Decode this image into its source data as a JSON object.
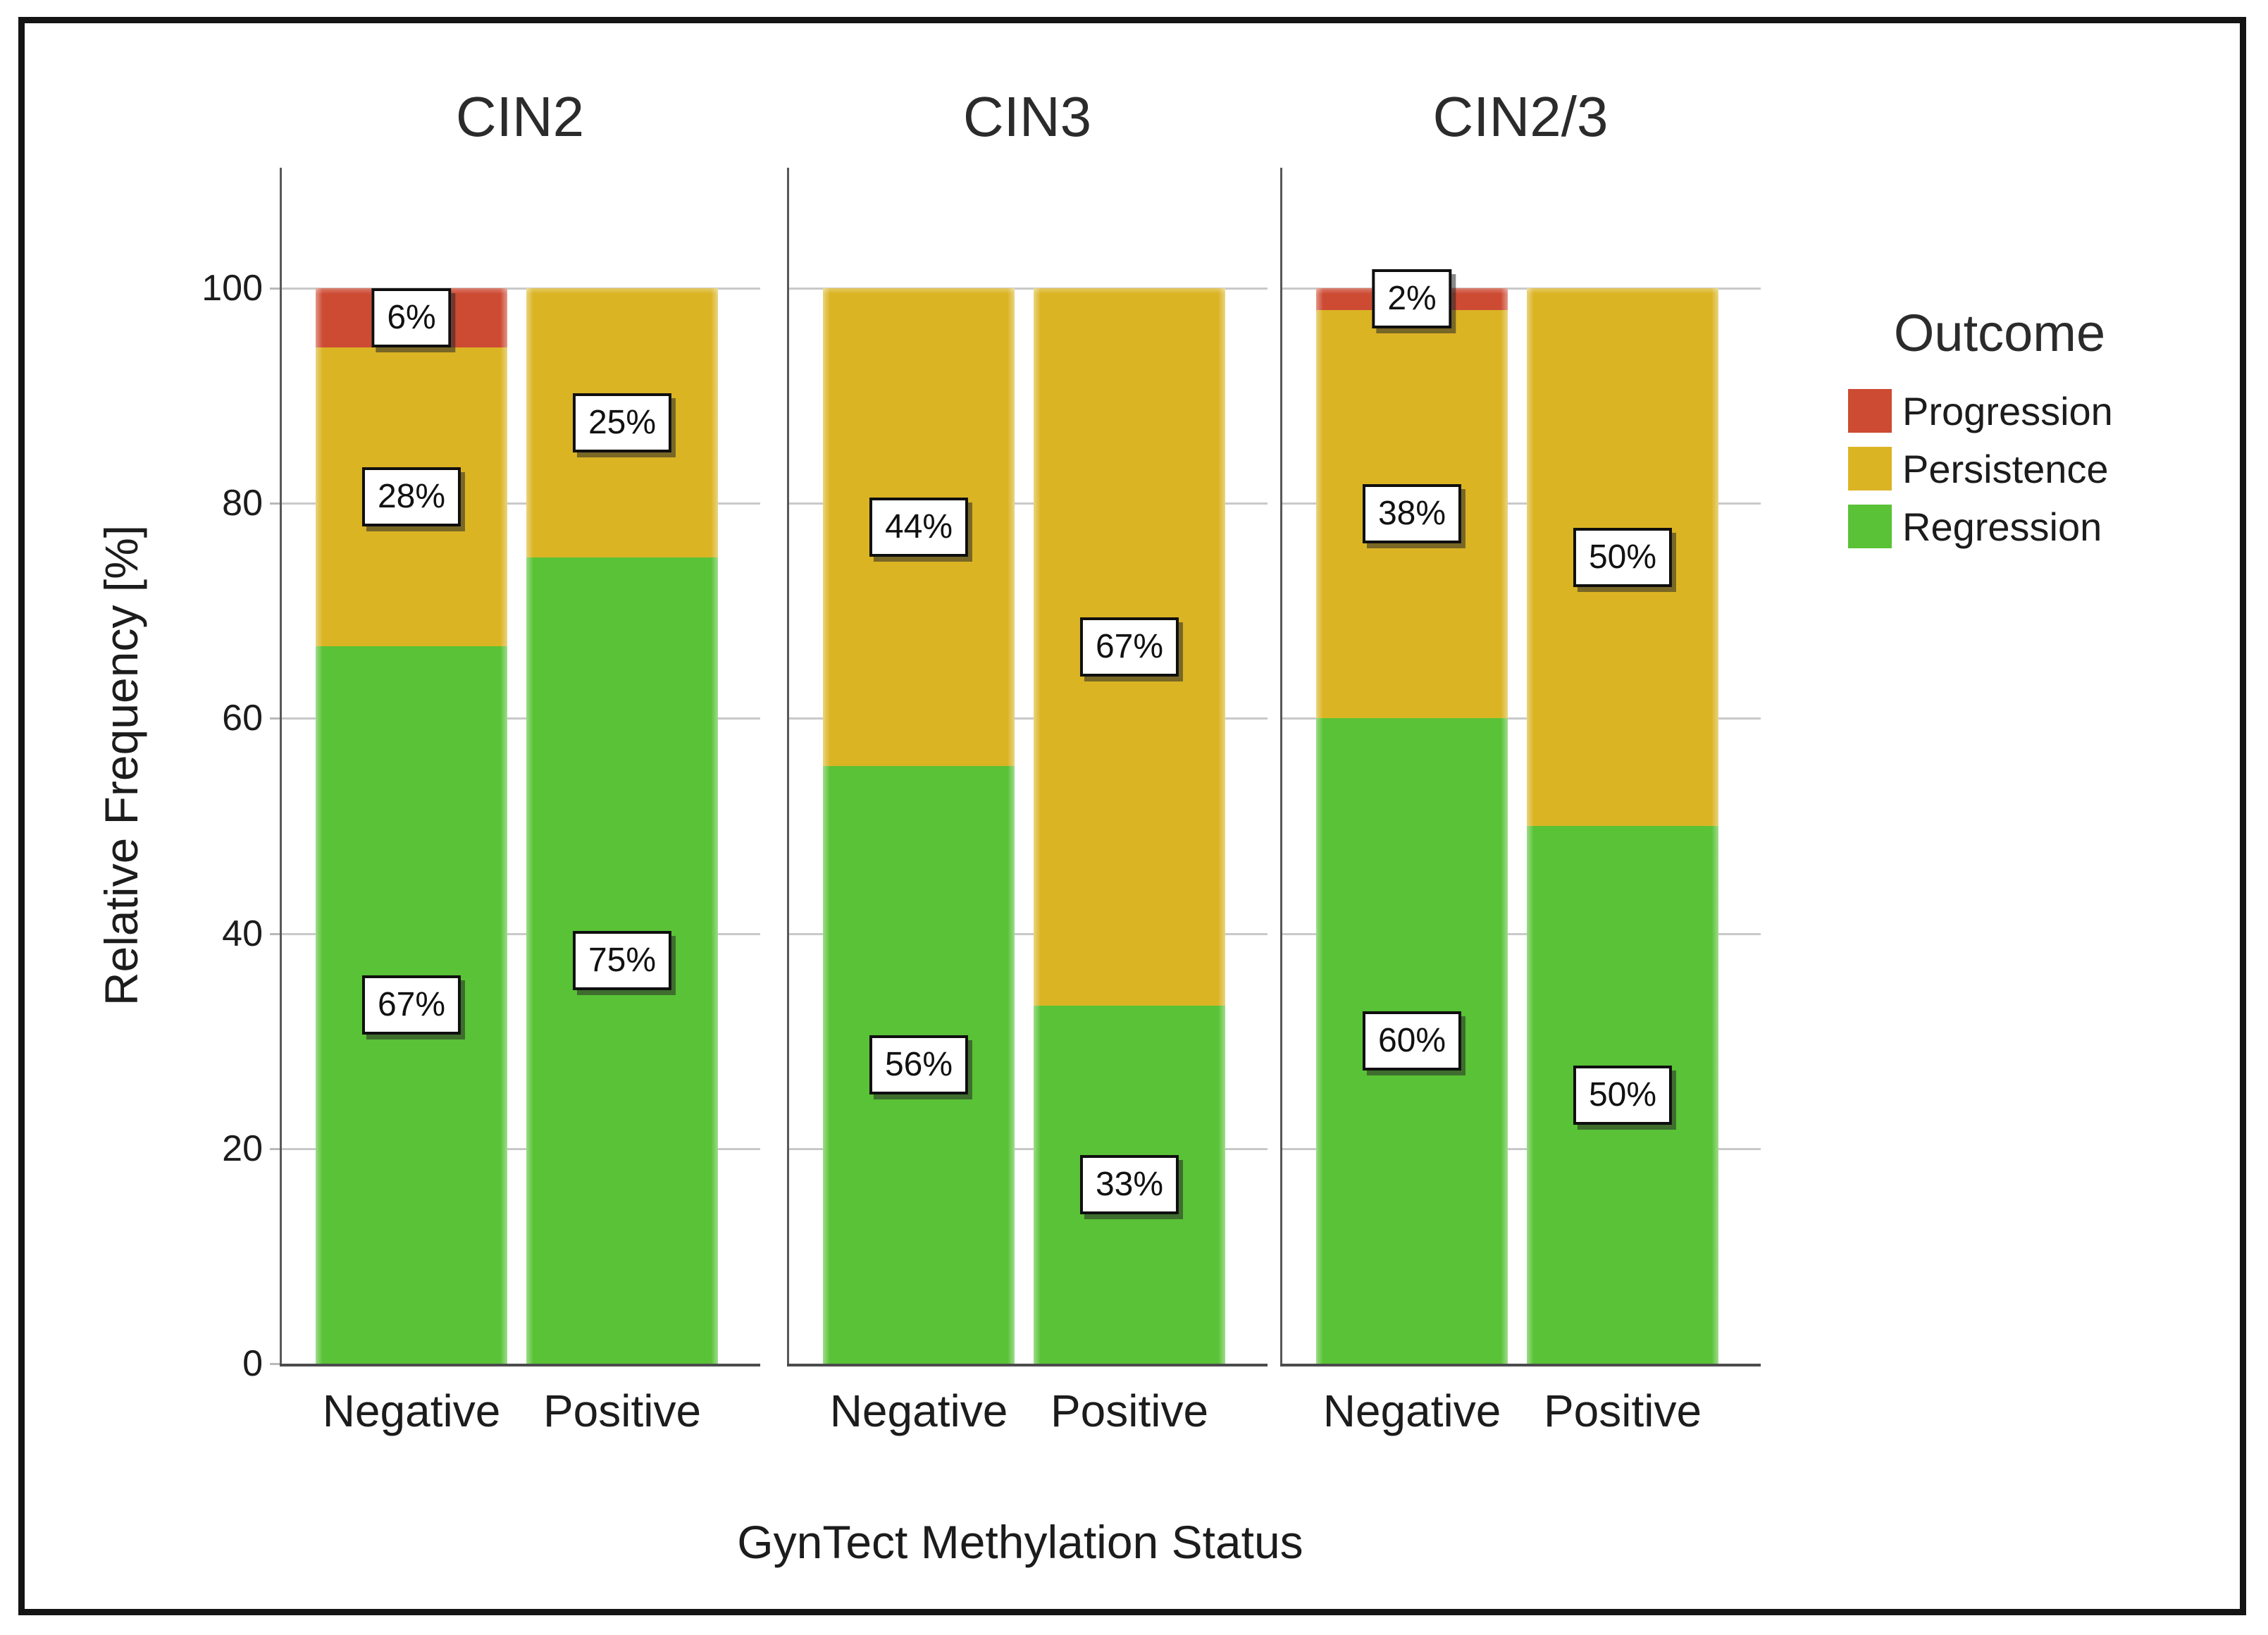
{
  "chart_data": {
    "type": "bar",
    "stacked": true,
    "orientation": "vertical",
    "xlabel": "GynTect Methylation Status",
    "ylabel": "Relative Frequency [%]",
    "ylim": [
      0,
      100
    ],
    "yticks": [
      0,
      20,
      40,
      60,
      80,
      100
    ],
    "grid": true,
    "legend_position": "right",
    "panels": [
      {
        "title": "CIN2",
        "categories": [
          "Negative",
          "Positive"
        ],
        "bars": [
          {
            "category": "Negative",
            "segments": [
              {
                "outcome": "Regression",
                "value": 66.7,
                "label": "67%"
              },
              {
                "outcome": "Persistence",
                "value": 27.8,
                "label": "28%"
              },
              {
                "outcome": "Progression",
                "value": 5.5,
                "label": "6%"
              }
            ]
          },
          {
            "category": "Positive",
            "segments": [
              {
                "outcome": "Regression",
                "value": 75.0,
                "label": "75%"
              },
              {
                "outcome": "Persistence",
                "value": 25.0,
                "label": "25%"
              }
            ]
          }
        ]
      },
      {
        "title": "CIN3",
        "categories": [
          "Negative",
          "Positive"
        ],
        "bars": [
          {
            "category": "Negative",
            "segments": [
              {
                "outcome": "Regression",
                "value": 55.6,
                "label": "56%"
              },
              {
                "outcome": "Persistence",
                "value": 44.4,
                "label": "44%"
              }
            ]
          },
          {
            "category": "Positive",
            "segments": [
              {
                "outcome": "Regression",
                "value": 33.3,
                "label": "33%"
              },
              {
                "outcome": "Persistence",
                "value": 66.7,
                "label": "67%"
              }
            ]
          }
        ]
      },
      {
        "title": "CIN2/3",
        "categories": [
          "Negative",
          "Positive"
        ],
        "bars": [
          {
            "category": "Negative",
            "segments": [
              {
                "outcome": "Regression",
                "value": 60.0,
                "label": "60%"
              },
              {
                "outcome": "Persistence",
                "value": 38.0,
                "label": "38%"
              },
              {
                "outcome": "Progression",
                "value": 2.0,
                "label": "2%"
              }
            ]
          },
          {
            "category": "Positive",
            "segments": [
              {
                "outcome": "Regression",
                "value": 50.0,
                "label": "50%"
              },
              {
                "outcome": "Persistence",
                "value": 50.0,
                "label": "50%"
              }
            ]
          }
        ]
      }
    ]
  },
  "legend": {
    "title": "Outcome",
    "items": [
      {
        "label": "Progression",
        "color": "#CD4A33"
      },
      {
        "label": "Persistence",
        "color": "#DBB424"
      },
      {
        "label": "Regression",
        "color": "#59C236"
      }
    ]
  },
  "colors": {
    "gridline": "#c9c9c9",
    "axis": "#58585a",
    "baseline": "#4b4b4d",
    "frame": "#141414"
  }
}
